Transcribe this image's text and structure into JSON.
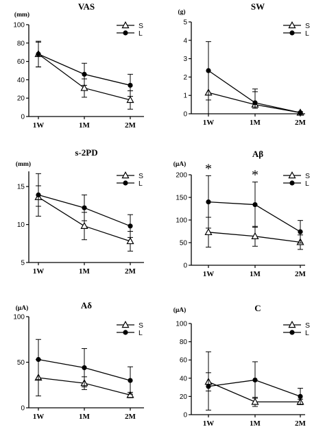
{
  "chart_data": [
    {
      "type": "line",
      "title": "VAS",
      "unit": "(mm)",
      "categories": [
        "1W",
        "1M",
        "2M"
      ],
      "ylim": [
        0,
        100
      ],
      "yticks": [
        0,
        20,
        40,
        60,
        80,
        100
      ],
      "series": [
        {
          "name": "S",
          "marker": "open-triangle",
          "values": [
            68,
            31,
            18
          ],
          "err_up": [
            13,
            10,
            10
          ],
          "err_down": [
            14,
            10,
            10
          ]
        },
        {
          "name": "L",
          "marker": "filled-circle",
          "values": [
            68,
            46,
            34
          ],
          "err_up": [
            14,
            12,
            12
          ],
          "err_down": [
            14,
            12,
            12
          ]
        }
      ],
      "annotations": []
    },
    {
      "type": "line",
      "title": "SW",
      "unit": "(g)",
      "categories": [
        "1W",
        "1M",
        "2M"
      ],
      "ylim": [
        0,
        5
      ],
      "yticks": [
        0,
        1,
        2,
        3,
        4,
        5
      ],
      "series": [
        {
          "name": "S",
          "marker": "open-triangle",
          "values": [
            1.15,
            0.5,
            0.06
          ],
          "err_up": [
            0.0,
            0.7,
            0.05
          ],
          "err_down": [
            0.4,
            0.2,
            0.05
          ]
        },
        {
          "name": "L",
          "marker": "filled-circle",
          "values": [
            2.35,
            0.6,
            0.06
          ],
          "err_up": [
            1.58,
            0.75,
            0.05
          ],
          "err_down": [
            2.35,
            0.3,
            0.05
          ]
        }
      ],
      "annotations": []
    },
    {
      "type": "line",
      "title": "s-2PD",
      "unit": "(mm)",
      "categories": [
        "1W",
        "1M",
        "2M"
      ],
      "ylim": [
        5,
        17
      ],
      "yticks": [
        5,
        10,
        15
      ],
      "series": [
        {
          "name": "S",
          "marker": "open-triangle",
          "values": [
            13.6,
            9.8,
            7.8
          ],
          "err_up": [
            1.5,
            1.8,
            1.3
          ],
          "err_down": [
            2.5,
            1.8,
            1.3
          ]
        },
        {
          "name": "L",
          "marker": "filled-circle",
          "values": [
            13.9,
            12.2,
            9.8
          ],
          "err_up": [
            2.8,
            1.7,
            1.5
          ],
          "err_down": [
            1.5,
            1.7,
            1.5
          ]
        }
      ],
      "annotations": []
    },
    {
      "type": "line",
      "title": "Aβ",
      "unit": "(μA)",
      "categories": [
        "1W",
        "1M",
        "2M"
      ],
      "ylim": [
        0,
        200
      ],
      "yticks": [
        0,
        50,
        100,
        150,
        200
      ],
      "series": [
        {
          "name": "S",
          "marker": "open-triangle",
          "values": [
            73,
            64,
            51
          ],
          "err_up": [
            33,
            22,
            16
          ],
          "err_down": [
            33,
            22,
            16
          ]
        },
        {
          "name": "L",
          "marker": "filled-circle",
          "values": [
            140,
            134,
            74
          ],
          "err_up": [
            58,
            50,
            25
          ],
          "err_down": [
            58,
            50,
            25
          ]
        }
      ],
      "annotations": [
        {
          "text": "*",
          "category": "1W"
        },
        {
          "text": "*",
          "category": "1M"
        }
      ]
    },
    {
      "type": "line",
      "title": "Aδ",
      "unit": "(μA)",
      "categories": [
        "1W",
        "1M",
        "2M"
      ],
      "ylim": [
        0,
        100
      ],
      "yticks": [
        0,
        50,
        100
      ],
      "series": [
        {
          "name": "S",
          "marker": "open-triangle",
          "values": [
            33,
            27,
            14
          ],
          "err_up": [
            20,
            7,
            3
          ],
          "err_down": [
            20,
            7,
            3
          ]
        },
        {
          "name": "L",
          "marker": "filled-circle",
          "values": [
            53,
            44,
            30
          ],
          "err_up": [
            22,
            21,
            15
          ],
          "err_down": [
            22,
            21,
            15
          ]
        }
      ],
      "annotations": []
    },
    {
      "type": "line",
      "title": "C",
      "unit": "(μA)",
      "categories": [
        "1W",
        "1M",
        "2M"
      ],
      "ylim": [
        0,
        100
      ],
      "yticks": [
        0,
        20,
        40,
        60,
        80,
        100
      ],
      "series": [
        {
          "name": "S",
          "marker": "open-triangle",
          "values": [
            36,
            14,
            14
          ],
          "err_up": [
            10,
            5,
            3
          ],
          "err_down": [
            10,
            5,
            3
          ]
        },
        {
          "name": "L",
          "marker": "filled-circle",
          "values": [
            31,
            38,
            20
          ],
          "err_up": [
            38,
            20,
            9
          ],
          "err_down": [
            26,
            20,
            9
          ]
        }
      ],
      "annotations": []
    }
  ]
}
